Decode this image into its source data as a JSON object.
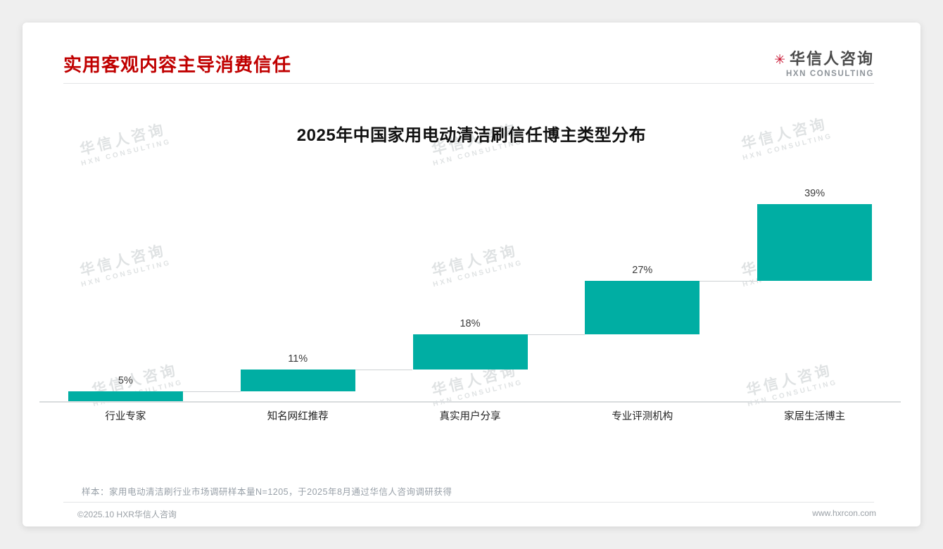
{
  "page": {
    "title": "实用客观内容主导消费信任",
    "footnote": "样本：家用电动清洁刷行业市场调研样本量N=1205，于2025年8月通过华信人咨询调研获得",
    "footer_left": "©2025.10 HXR华信人咨询",
    "footer_right": "www.hxrcon.com"
  },
  "logo": {
    "mark": "✳",
    "name": "华信人咨询",
    "subtitle": "HXN CONSULTING"
  },
  "watermark": {
    "line1": "华信人咨询",
    "line2": "HXN CONSULTING"
  },
  "colors": {
    "accent_red": "#c00000",
    "bar_teal": "#00aea3"
  },
  "chart_data": {
    "type": "bar",
    "subtype": "waterfall",
    "title": "2025年中国家用电动清洁刷信任博主类型分布",
    "categories": [
      "行业专家",
      "知名网红推荐",
      "真实用户分享",
      "专业评测机构",
      "家居生活博主"
    ],
    "values": [
      5,
      11,
      18,
      27,
      39
    ],
    "labels": [
      "5%",
      "11%",
      "18%",
      "27%",
      "39%"
    ],
    "cumulative_start": [
      0,
      5,
      16,
      34,
      61
    ],
    "ylim": [
      0,
      100
    ],
    "grid": false,
    "legend": false,
    "bar_color": "#00aea3"
  }
}
